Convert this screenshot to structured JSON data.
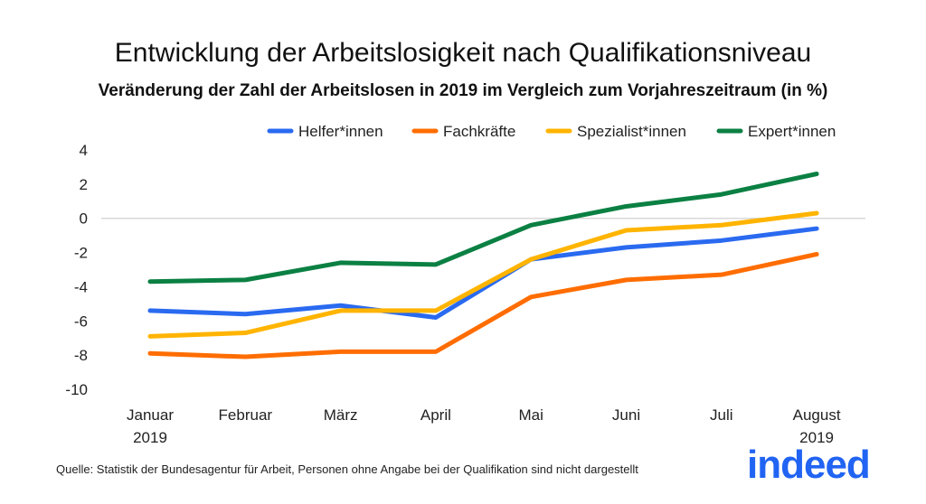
{
  "chart_data": {
    "type": "line",
    "title": "Entwicklung der Arbeitslosigkeit nach Qualifikationsniveau",
    "subtitle": "Veränderung der Zahl der Arbeitslosen in 2019 im Vergleich zum Vorjahreszeitraum (in %)",
    "categories": [
      [
        "Januar",
        "2019"
      ],
      [
        "Februar",
        ""
      ],
      [
        "März",
        ""
      ],
      [
        "April",
        ""
      ],
      [
        "Mai",
        ""
      ],
      [
        "Juni",
        ""
      ],
      [
        "Juli",
        ""
      ],
      [
        "August",
        "2019"
      ]
    ],
    "ylim": [
      -10,
      4
    ],
    "yticks": [
      "4",
      "2",
      "0",
      "-2",
      "-4",
      "-6",
      "-8",
      "-10"
    ],
    "grid": "zero line only",
    "legend": "top-right",
    "series": [
      {
        "name": "Helfer*innen",
        "color": "#2a6af0",
        "values": [
          -5.4,
          -5.6,
          -5.1,
          -5.8,
          -2.4,
          -1.7,
          -1.3,
          -0.6
        ]
      },
      {
        "name": "Fachkräfte",
        "color": "#ff6d01",
        "values": [
          -7.9,
          -8.1,
          -7.8,
          -7.8,
          -4.6,
          -3.6,
          -3.3,
          -2.1
        ]
      },
      {
        "name": "Spezialist*innen",
        "color": "#ffb400",
        "values": [
          -6.9,
          -6.7,
          -5.4,
          -5.4,
          -2.4,
          -0.7,
          -0.4,
          0.3
        ]
      },
      {
        "name": "Expert*innen",
        "color": "#0b8043",
        "values": [
          -3.7,
          -3.6,
          -2.6,
          -2.7,
          -0.4,
          0.7,
          1.4,
          2.6
        ]
      }
    ]
  },
  "source": "Quelle: Statistik der Bundesagentur für Arbeit, Personen ohne Angabe bei der Qualifikation sind nicht dargestellt",
  "logo": "indeed"
}
